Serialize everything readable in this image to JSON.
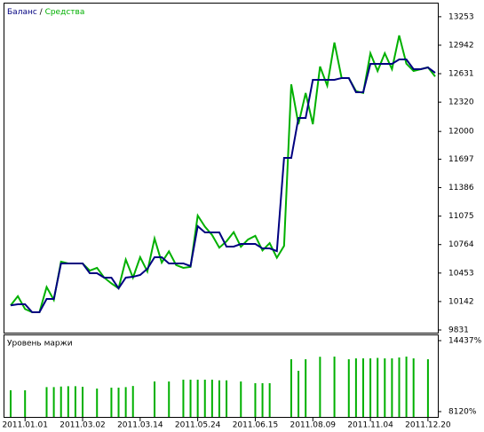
{
  "chart_data": [
    {
      "type": "line",
      "categories": [
        null,
        null,
        "2011.01.01",
        null,
        null,
        null,
        null,
        null,
        null,
        null,
        "2011.03.02",
        null,
        null,
        null,
        null,
        null,
        null,
        null,
        "2011.03.14",
        null,
        null,
        null,
        null,
        null,
        null,
        null,
        "2011.05.24",
        null,
        null,
        null,
        null,
        null,
        null,
        null,
        "2011.06.15",
        null,
        null,
        null,
        null,
        null,
        null,
        null,
        "2011.08.09",
        null,
        null,
        null,
        null,
        null,
        null,
        null,
        "2011.11.04",
        null,
        null,
        null,
        null,
        null,
        null,
        null,
        "2011.12.20",
        null
      ],
      "series": [
        {
          "name": "Средства",
          "color": "#00b000",
          "values": [
            10100,
            10200,
            10060,
            10025,
            10025,
            10300,
            10160,
            10577,
            10558,
            10558,
            10558,
            10480,
            10510,
            10403,
            10340,
            10286,
            10600,
            10403,
            10626,
            10470,
            10830,
            10568,
            10690,
            10540,
            10510,
            10520,
            11081,
            10960,
            10868,
            10730,
            10800,
            10900,
            10740,
            10820,
            10860,
            10700,
            10780,
            10620,
            10750,
            12515,
            12079,
            12420,
            12079,
            12709,
            12500,
            12971,
            12583,
            12583,
            12440,
            12420,
            12854,
            12660,
            12854,
            12680,
            13048,
            12740,
            12660,
            12680,
            12700,
            12600
          ]
        },
        {
          "name": "Баланс",
          "color": "#000080",
          "values": [
            10100,
            10112,
            10112,
            10025,
            10025,
            10170,
            10170,
            10558,
            10558,
            10558,
            10558,
            10451,
            10451,
            10403,
            10403,
            10286,
            10403,
            10412,
            10432,
            10500,
            10626,
            10626,
            10558,
            10558,
            10558,
            10529,
            10965,
            10897,
            10897,
            10897,
            10742,
            10742,
            10771,
            10771,
            10771,
            10722,
            10722,
            10693,
            11711,
            11711,
            12147,
            12147,
            12564,
            12564,
            12564,
            12564,
            12583,
            12583,
            12428,
            12428,
            12738,
            12738,
            12738,
            12738,
            12786,
            12786,
            12680,
            12680,
            12699,
            12641
          ]
        }
      ],
      "ylim": [
        9802,
        13397
      ],
      "yticks": [
        9831,
        10142,
        10453,
        10764,
        11075,
        11386,
        11697,
        12000,
        12320,
        12631,
        12942,
        13253
      ]
    },
    {
      "type": "bar",
      "title": "Уровень маржи",
      "color": "#00b000",
      "values": [
        10016,
        null,
        10016,
        null,
        null,
        10300,
        10300,
        10350,
        10380,
        10380,
        10330,
        null,
        10170,
        null,
        10250,
        10250,
        10300,
        10400,
        null,
        null,
        10800,
        null,
        10800,
        null,
        10960,
        10960,
        10960,
        10960,
        10960,
        10900,
        10900,
        null,
        10800,
        null,
        10650,
        10650,
        10650,
        null,
        null,
        12781,
        11754,
        12781,
        null,
        13000,
        null,
        13018,
        null,
        12781,
        12860,
        12860,
        12860,
        12900,
        12860,
        12860,
        12940,
        13018,
        12860,
        null,
        12781,
        null
      ],
      "ylim": [
        7646,
        14911
      ],
      "yticks": [
        {
          "value": 8120,
          "label": "8120%"
        },
        {
          "value": 14437,
          "label": "14437%"
        }
      ]
    }
  ]
}
